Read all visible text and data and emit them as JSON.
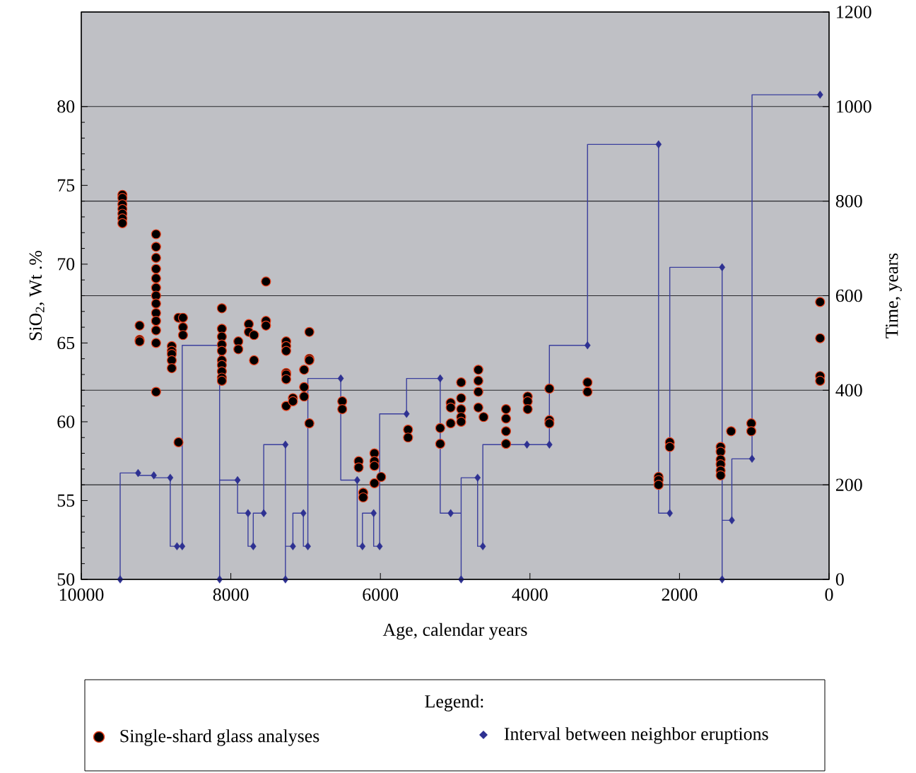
{
  "chart_data": {
    "type": "scatter",
    "xlabel": "Age, calendar years",
    "ylabel": "SiO$_{2}$, Wt .%",
    "y2label": "Time, years",
    "legend_title": "Legend:",
    "legend": "bottom",
    "grid": "y",
    "xlim": [
      10000,
      0
    ],
    "xticks": [
      10000,
      8000,
      6000,
      4000,
      2000,
      0
    ],
    "ylim": [
      50,
      86
    ],
    "yticks": [
      50,
      55,
      60,
      65,
      70,
      75,
      80
    ],
    "y2lim": [
      0,
      1200
    ],
    "y2ticks": [
      0,
      200,
      400,
      600,
      800,
      1000,
      1200
    ],
    "series": [
      {
        "name": "Single-shard glass analyses",
        "marker": "circle",
        "color": "#000000",
        "x": [
          9450,
          9450,
          9450,
          9450,
          9450,
          9450,
          9450,
          9220,
          9220,
          9220,
          9000,
          9000,
          9000,
          9000,
          9000,
          9000,
          9000,
          9000,
          9000,
          9000,
          9000,
          9000,
          9000,
          8790,
          8790,
          8790,
          8790,
          8790,
          8700,
          8700,
          8640,
          8640,
          8640,
          8120,
          8120,
          8120,
          8120,
          8120,
          8120,
          8120,
          8120,
          8120,
          8120,
          7900,
          7900,
          7760,
          7760,
          7690,
          7690,
          7530,
          7530,
          7530,
          7260,
          7260,
          7260,
          7260,
          7260,
          7260,
          7260,
          7170,
          7170,
          7020,
          7020,
          7020,
          6950,
          6950,
          6950,
          6950,
          6510,
          6510,
          6290,
          6290,
          6230,
          6230,
          6080,
          6080,
          6080,
          6080,
          5990,
          5630,
          5630,
          5200,
          5200,
          5060,
          5060,
          5060,
          4920,
          4920,
          4920,
          4920,
          4920,
          4690,
          4690,
          4690,
          4690,
          4620,
          4320,
          4320,
          4320,
          4320,
          4030,
          4030,
          4030,
          3740,
          3740,
          3740,
          3230,
          3230,
          2280,
          2280,
          2280,
          2130,
          2130,
          1450,
          1450,
          1450,
          1450,
          1450,
          1450,
          1310,
          1040,
          1040,
          120,
          120,
          120,
          120
        ],
        "values": [
          74.4,
          74.2,
          73.8,
          73.5,
          73.2,
          72.9,
          72.6,
          66.1,
          65.2,
          65.1,
          71.9,
          71.1,
          70.4,
          69.7,
          69.1,
          68.5,
          68.0,
          67.5,
          66.9,
          66.4,
          65.8,
          65.0,
          61.9,
          64.8,
          64.5,
          64.3,
          63.9,
          63.4,
          66.6,
          58.7,
          66.6,
          66.0,
          65.5,
          67.2,
          65.9,
          65.4,
          64.9,
          64.5,
          63.9,
          63.6,
          63.2,
          62.8,
          62.6,
          65.1,
          64.6,
          66.2,
          65.7,
          65.5,
          63.9,
          68.9,
          66.4,
          66.1,
          65.1,
          64.8,
          64.5,
          63.1,
          63.0,
          62.7,
          61.0,
          61.5,
          61.3,
          63.3,
          62.2,
          61.6,
          65.7,
          64.0,
          63.9,
          59.9,
          61.3,
          60.8,
          57.5,
          57.1,
          55.5,
          55.2,
          58.0,
          57.5,
          57.2,
          56.1,
          56.5,
          59.5,
          59.0,
          59.6,
          58.6,
          61.2,
          60.9,
          59.9,
          62.5,
          61.5,
          60.8,
          60.3,
          60.0,
          63.3,
          62.6,
          61.9,
          60.9,
          60.3,
          60.8,
          60.2,
          59.4,
          58.6,
          61.6,
          61.3,
          60.8,
          62.1,
          60.1,
          59.9,
          62.5,
          61.9,
          56.5,
          56.3,
          56.0,
          58.7,
          58.4,
          58.4,
          58.1,
          57.6,
          57.3,
          56.9,
          56.6,
          59.4,
          59.9,
          59.4,
          67.6,
          65.3,
          62.9,
          62.6
        ]
      },
      {
        "name": "Interval between neighbor eruptions",
        "axis": "y2",
        "marker": "diamond",
        "color": "#2e3192",
        "x": [
          9480,
          9240,
          9030,
          8810,
          8720,
          8650,
          8150,
          7910,
          7770,
          7700,
          7560,
          7270,
          7270,
          7170,
          7030,
          6970,
          6530,
          6310,
          6240,
          6090,
          6010,
          5650,
          5200,
          5060,
          4920,
          4700,
          4630,
          4040,
          3740,
          3230,
          2280,
          2130,
          1430,
          1430,
          1300,
          1030,
          120
        ],
        "values": [
          0,
          225,
          220,
          215,
          70,
          70,
          0,
          210,
          140,
          70,
          140,
          285,
          0,
          70,
          140,
          70,
          425,
          210,
          70,
          140,
          70,
          350,
          425,
          140,
          0,
          215,
          70,
          285,
          285,
          495,
          920,
          140,
          660,
          0,
          125,
          255,
          1025
        ]
      },
      {
        "type": "line",
        "axis": "y2",
        "marker": "none",
        "line_style": "solid",
        "color": "#3b3f9e",
        "x": [
          9480,
          9480,
          9240,
          9240,
          9030,
          9030,
          8810,
          8810,
          8650,
          8650,
          8150,
          8150,
          8150,
          7910,
          7910,
          7770,
          7770,
          7700,
          7700,
          7560,
          7560,
          7270,
          7270,
          7270,
          7170,
          7170,
          7030,
          7030,
          6970,
          6970,
          6530,
          6530,
          6310,
          6310,
          6240,
          6240,
          6090,
          6090,
          6010,
          6010,
          5650,
          5650,
          5200,
          5200,
          4920,
          4920,
          4920,
          4700,
          4700,
          4630,
          4630,
          3740,
          3740,
          3230,
          3230,
          2280,
          2280,
          2130,
          2130,
          1430,
          1430,
          1430,
          1300,
          1300,
          1030,
          1030,
          120
        ],
        "values": [
          0,
          225,
          225,
          220,
          220,
          215,
          215,
          70,
          70,
          495,
          495,
          0,
          210,
          210,
          140,
          140,
          70,
          70,
          140,
          140,
          285,
          285,
          0,
          70,
          70,
          140,
          140,
          70,
          70,
          425,
          425,
          210,
          210,
          70,
          70,
          140,
          140,
          70,
          70,
          350,
          350,
          425,
          425,
          140,
          140,
          0,
          215,
          215,
          70,
          70,
          285,
          285,
          495,
          495,
          920,
          920,
          140,
          140,
          660,
          660,
          0,
          125,
          125,
          255,
          255,
          1025,
          1025
        ]
      }
    ]
  }
}
